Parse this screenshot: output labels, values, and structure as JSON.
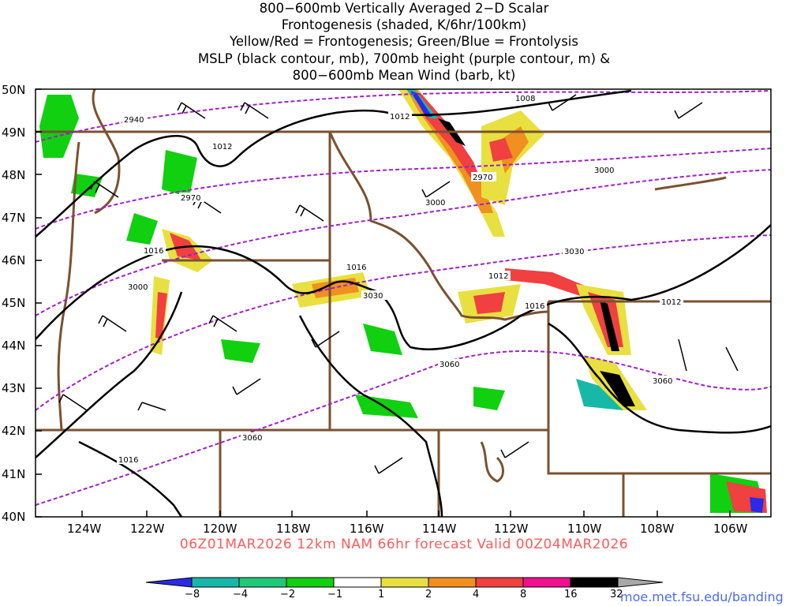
{
  "title_lines": [
    "800−600mb Vertically Averaged 2−D Scalar",
    "Frontogenesis (shaded, K/6hr/100km)",
    "Yellow/Red = Frontogenesis;  Green/Blue = Frontolysis",
    "MSLP (black contour, mb), 700mb height (purple contour, m) &",
    "800−600mb Mean Wind (barb, kt)"
  ],
  "subtitle": "06Z01MAR2026 12km NAM 66hr forecast Valid 00Z04MAR2026",
  "url": "moe.met.fsu.edu/banding",
  "lat_labels": [
    "50N",
    "49N",
    "48N",
    "47N",
    "46N",
    "45N",
    "44N",
    "43N",
    "42N",
    "41N",
    "40N"
  ],
  "lon_labels": [
    "124W",
    "122W",
    "120W",
    "118W",
    "116W",
    "114W",
    "112W",
    "110W",
    "108W",
    "106W"
  ],
  "colorbar": {
    "labels": [
      "−8",
      "−4",
      "−2",
      "−1",
      "1",
      "2",
      "4",
      "8",
      "16",
      "32"
    ],
    "colors": [
      "#2a2ae8",
      "#18b8a8",
      "#20c878",
      "#10d010",
      "#ffffff",
      "#e8e040",
      "#f09020",
      "#f04040",
      "#f01090",
      "#000000"
    ]
  },
  "mslp_labels": [
    "1008",
    "1012",
    "1012",
    "1016",
    "1016",
    "1016",
    "1012",
    "1012",
    "1016"
  ],
  "height_labels": [
    "2940",
    "2970",
    "3000",
    "2970",
    "3000",
    "3030",
    "3030",
    "3060",
    "3060",
    "3060",
    "3000"
  ]
}
